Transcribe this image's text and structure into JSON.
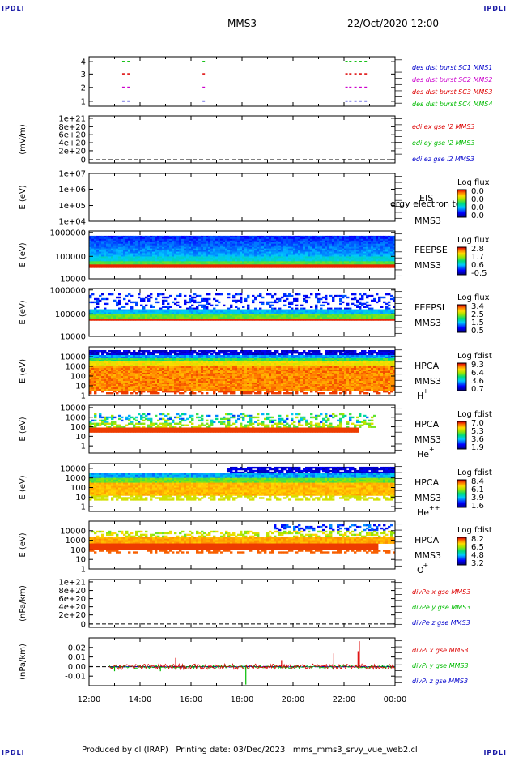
{
  "header": {
    "corner_label": "IPDLI",
    "title": "MMS3",
    "datetime": "22/Oct/2020 12:00"
  },
  "footer": {
    "produced_by": "Produced by cl (IRAP)",
    "printing_date": "Printing date: 03/Dec/2023",
    "script": "mms_mms3_srvy_vue_web2.cl"
  },
  "x_axis": {
    "ticks": [
      "12:00",
      "14:00",
      "16:00",
      "18:00",
      "20:00",
      "22:00",
      "00:00"
    ]
  },
  "colors": {
    "blue": "#0000cc",
    "magenta": "#cc00cc",
    "red": "#dd0000",
    "green": "#00bb00"
  },
  "chart_data": [
    {
      "id": "burst",
      "type": "scatter",
      "ylabel": "",
      "yticks": [
        "4",
        "3",
        "2",
        "1"
      ],
      "legend": [
        {
          "label": "des dist burst SC1 MMS1",
          "color": "#0000cc"
        },
        {
          "label": "des dist burst SC2 MMS2",
          "color": "#cc00cc"
        },
        {
          "label": "des dist burst SC3 MMS3",
          "color": "#dd0000"
        },
        {
          "label": "des dist burst SC4 MMS4",
          "color": "#00bb00"
        }
      ],
      "series": [
        {
          "level": 4,
          "color": "#00bb00",
          "x_hours": [
            13.3,
            13.5,
            16.45,
            22.05,
            22.2,
            22.4,
            22.6,
            22.8
          ]
        },
        {
          "level": 3,
          "color": "#dd0000",
          "x_hours": [
            13.3,
            13.5,
            16.45,
            22.05,
            22.2,
            22.4,
            22.6,
            22.8
          ]
        },
        {
          "level": 2,
          "color": "#cc00cc",
          "x_hours": [
            13.3,
            13.5,
            16.45,
            22.05,
            22.2,
            22.4,
            22.6,
            22.8
          ]
        },
        {
          "level": 1,
          "color": "#0000cc",
          "x_hours": [
            13.3,
            13.5,
            16.45,
            22.05,
            22.2,
            22.4,
            22.6,
            22.8
          ]
        }
      ]
    },
    {
      "id": "edi",
      "type": "line",
      "ylabel": "(mV/m)",
      "yticks": [
        "1e+21",
        "8e+20",
        "6e+20",
        "4e+20",
        "2e+20",
        "0"
      ],
      "legend": [
        {
          "label": "edi ex gse l2 MMS3",
          "color": "#dd0000"
        },
        {
          "label": "edi ey gse l2 MMS3",
          "color": "#00bb00"
        },
        {
          "label": "edi ez gse l2 MMS3",
          "color": "#0000cc"
        }
      ]
    },
    {
      "id": "eis",
      "type": "heatmap",
      "ylabel": "E (eV)",
      "yticks": [
        "1e+07",
        "1e+06",
        "1e+05",
        "1e+04"
      ],
      "instrument": "EIS",
      "spacecraft": "MMS3",
      "overlay": "ergy electron to",
      "colorbar": {
        "title": "Log flux",
        "values": [
          "0.0",
          "0.0",
          "0.0",
          "0.0"
        ]
      }
    },
    {
      "id": "feepse",
      "type": "heatmap",
      "ylabel": "E (eV)",
      "yticks": [
        "1000000",
        "100000",
        "10000"
      ],
      "instrument": "FEEPSE",
      "spacecraft": "MMS3",
      "colorbar": {
        "title": "Log flux",
        "values": [
          "2.8",
          "1.7",
          "0.6",
          "-0.5"
        ]
      }
    },
    {
      "id": "feepsi",
      "type": "heatmap",
      "ylabel": "E (eV)",
      "yticks": [
        "1000000",
        "100000",
        "10000"
      ],
      "instrument": "FEEPSI",
      "spacecraft": "MMS3",
      "colorbar": {
        "title": "Log flux",
        "values": [
          "3.4",
          "2.5",
          "1.5",
          "0.5"
        ]
      }
    },
    {
      "id": "hpca_h",
      "type": "heatmap",
      "ylabel": "E (eV)",
      "yticks": [
        "10000",
        "1000",
        "100",
        "10",
        "1"
      ],
      "instrument": "HPCA",
      "spacecraft": "MMS3",
      "species": "H",
      "charge": "+",
      "colorbar": {
        "title": "Log fdist",
        "values": [
          "9.3",
          "6.4",
          "3.6",
          "0.7"
        ]
      }
    },
    {
      "id": "hpca_he",
      "type": "heatmap",
      "ylabel": "E (eV)",
      "yticks": [
        "10000",
        "1000",
        "100",
        "10",
        "1"
      ],
      "instrument": "HPCA",
      "spacecraft": "MMS3",
      "species": "He",
      "charge": "+",
      "colorbar": {
        "title": "Log fdist",
        "values": [
          "7.0",
          "5.3",
          "3.6",
          "1.9"
        ]
      }
    },
    {
      "id": "hpca_hepp",
      "type": "heatmap",
      "ylabel": "E (eV)",
      "yticks": [
        "10000",
        "1000",
        "100",
        "10",
        "1"
      ],
      "instrument": "HPCA",
      "spacecraft": "MMS3",
      "species": "He",
      "charge": "++",
      "colorbar": {
        "title": "Log fdist",
        "values": [
          "8.4",
          "6.1",
          "3.9",
          "1.6"
        ]
      }
    },
    {
      "id": "hpca_o",
      "type": "heatmap",
      "ylabel": "E (eV)",
      "yticks": [
        "10000",
        "1000",
        "100",
        "10",
        "1"
      ],
      "instrument": "HPCA",
      "spacecraft": "MMS3",
      "species": "O",
      "charge": "+",
      "colorbar": {
        "title": "Log fdist",
        "values": [
          "8.2",
          "6.5",
          "4.8",
          "3.2"
        ]
      }
    },
    {
      "id": "divpe",
      "type": "line",
      "ylabel": "(nPa/km)",
      "yticks": [
        "1e+21",
        "8e+20",
        "6e+20",
        "4e+20",
        "2e+20",
        "0"
      ],
      "legend": [
        {
          "label": "divPe x gse MMS3",
          "color": "#dd0000"
        },
        {
          "label": "divPe y gse MMS3",
          "color": "#00bb00"
        },
        {
          "label": "divPe z gse MMS3",
          "color": "#0000cc"
        }
      ]
    },
    {
      "id": "divpi",
      "type": "line",
      "ylabel": "(nPa/km)",
      "yticks": [
        "0.02",
        "0.01",
        "0.00",
        "-0.01"
      ],
      "ylim": [
        -0.017,
        0.026
      ],
      "legend": [
        {
          "label": "divPi x gse MMS3",
          "color": "#dd0000"
        },
        {
          "label": "divPi y gse MMS3",
          "color": "#00bb00"
        },
        {
          "label": "divPi z gse MMS3",
          "color": "#0000cc"
        }
      ],
      "spikes": [
        {
          "series": "x",
          "x_hours": 22.6,
          "y": 0.023
        },
        {
          "series": "x",
          "x_hours": 22.55,
          "y": 0.014
        },
        {
          "series": "x",
          "x_hours": 21.6,
          "y": 0.012
        },
        {
          "series": "x",
          "x_hours": 15.4,
          "y": 0.008
        },
        {
          "series": "x",
          "x_hours": 19.55,
          "y": 0.006
        },
        {
          "series": "y",
          "x_hours": 18.15,
          "y": -0.016
        },
        {
          "series": "y",
          "x_hours": 13.0,
          "y": -0.004
        },
        {
          "series": "y",
          "x_hours": 14.8,
          "y": -0.004
        }
      ]
    }
  ]
}
